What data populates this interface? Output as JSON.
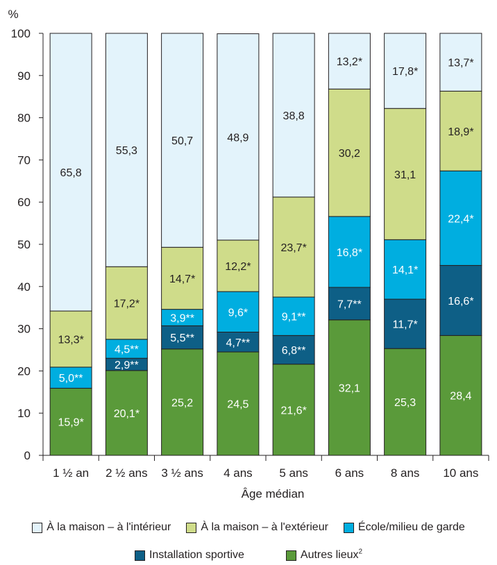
{
  "chart_data": {
    "type": "bar",
    "stacked": true,
    "y_unit_label": "%",
    "xlabel": "Âge médian",
    "ylim": [
      0,
      100
    ],
    "yticks": [
      0,
      10,
      20,
      30,
      40,
      50,
      60,
      70,
      80,
      90,
      100
    ],
    "categories": [
      "1 ½ an",
      "2 ½ ans",
      "3 ½ ans",
      "4 ans",
      "5 ans",
      "6 ans",
      "8 ans",
      "10 ans"
    ],
    "series": [
      {
        "name": "Autres lieux",
        "name_superscript": "2",
        "color": "#5a9a3a",
        "values": [
          15.9,
          20.1,
          25.2,
          24.5,
          21.6,
          32.1,
          25.3,
          28.4
        ],
        "labels": [
          "15,9*",
          "20,1*",
          "25,2",
          "24,5",
          "21,6*",
          "32,1",
          "25,3",
          "28,4"
        ]
      },
      {
        "name": "Installation sportive",
        "color": "#0e5f86",
        "values": [
          0,
          2.9,
          5.5,
          4.7,
          6.8,
          7.7,
          11.7,
          16.6
        ],
        "labels": [
          "",
          "2,9**",
          "5,5**",
          "4,7**",
          "6,8**",
          "7,7**",
          "11,7*",
          "16,6*"
        ]
      },
      {
        "name": "École/milieu de garde",
        "color": "#00aee0",
        "values": [
          5.0,
          4.5,
          3.9,
          9.6,
          9.1,
          16.8,
          14.1,
          22.4
        ],
        "labels": [
          "5,0**",
          "4,5**",
          "3,9**",
          "9,6*",
          "9,1**",
          "16,8*",
          "14,1*",
          "22,4*"
        ]
      },
      {
        "name": "À la maison – à l'extérieur",
        "color": "#cfdc8a",
        "values": [
          13.3,
          17.2,
          14.7,
          12.2,
          23.7,
          30.2,
          31.1,
          18.9
        ],
        "labels": [
          "13,3*",
          "17,2*",
          "14,7*",
          "12,2*",
          "23,7*",
          "30,2",
          "31,1",
          "18,9*"
        ]
      },
      {
        "name": "À la maison – à l'intérieur",
        "color": "#e3f3fb",
        "values": [
          65.8,
          55.3,
          50.7,
          48.9,
          38.8,
          13.2,
          17.8,
          13.7
        ],
        "labels": [
          "65,8",
          "55,3",
          "50,7",
          "48,9",
          "38,8",
          "13,2*",
          "17,8*",
          "13,7*"
        ]
      }
    ],
    "legend_rows": [
      [
        "À la maison – à l'intérieur",
        "À la maison – à l'extérieur",
        "École/milieu de garde"
      ],
      [
        "Installation sportive",
        "Autres lieux"
      ]
    ],
    "legend_position": "bottom",
    "grid": false
  }
}
